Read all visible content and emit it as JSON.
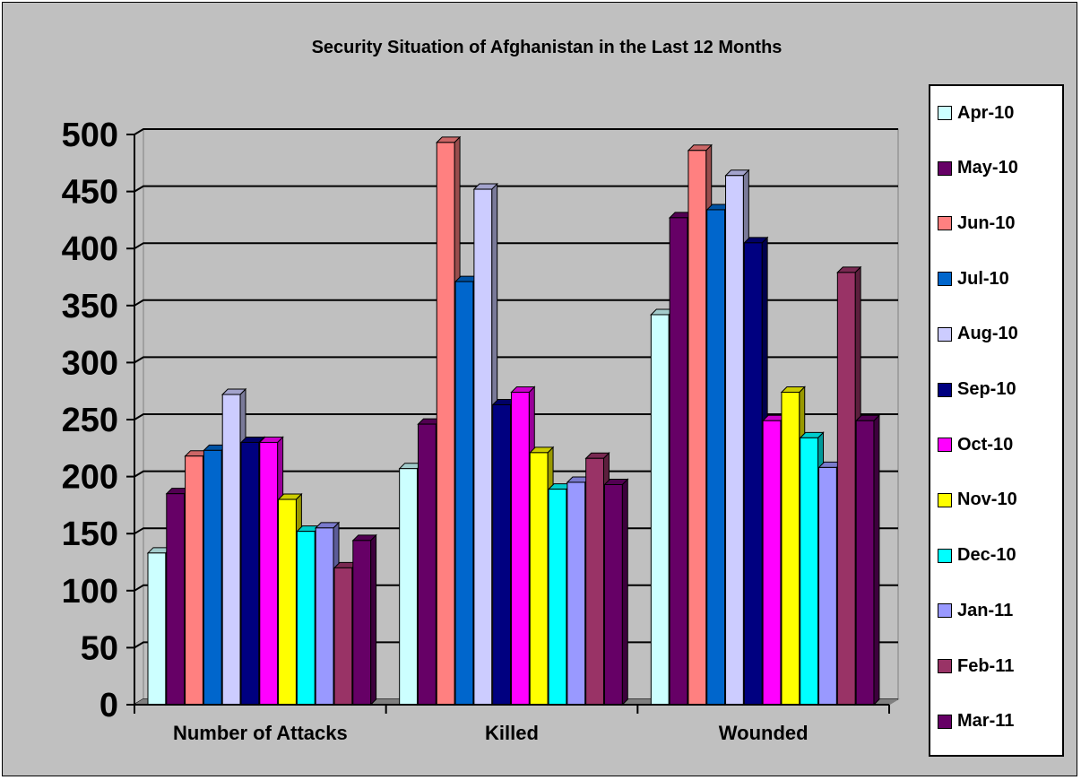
{
  "chart_data": {
    "type": "bar",
    "title": "Security Situation of Afghanistan in the Last 12 Months",
    "categories": [
      "Number of Attacks",
      "Killed",
      "Wounded"
    ],
    "ylim": [
      0,
      500
    ],
    "yticks": [
      "0",
      "50",
      "100",
      "150",
      "200",
      "250",
      "300",
      "350",
      "400",
      "450",
      "500"
    ],
    "grid": true,
    "legend_position": "right",
    "series": [
      {
        "name": "Apr-10",
        "color": "#ccffff",
        "values": [
          133,
          207,
          342
        ]
      },
      {
        "name": "May-10",
        "color": "#660066",
        "values": [
          185,
          246,
          427
        ]
      },
      {
        "name": "Jun-10",
        "color": "#ff8080",
        "values": [
          218,
          493,
          486
        ]
      },
      {
        "name": "Jul-10",
        "color": "#0066cc",
        "values": [
          223,
          371,
          434
        ]
      },
      {
        "name": "Aug-10",
        "color": "#ccccff",
        "values": [
          272,
          452,
          464
        ]
      },
      {
        "name": "Sep-10",
        "color": "#000080",
        "values": [
          230,
          263,
          405
        ]
      },
      {
        "name": "Oct-10",
        "color": "#ff00ff",
        "values": [
          230,
          274,
          249
        ]
      },
      {
        "name": "Nov-10",
        "color": "#ffff00",
        "values": [
          180,
          221,
          274
        ]
      },
      {
        "name": "Dec-10",
        "color": "#00ffff",
        "values": [
          152,
          189,
          234
        ]
      },
      {
        "name": "Jan-11",
        "color": "#9999ff",
        "values": [
          155,
          195,
          208
        ]
      },
      {
        "name": "Feb-11",
        "color": "#993366",
        "values": [
          120,
          216,
          379
        ]
      },
      {
        "name": "Mar-11",
        "color": "#660066",
        "values": [
          144,
          193,
          249
        ]
      }
    ]
  }
}
